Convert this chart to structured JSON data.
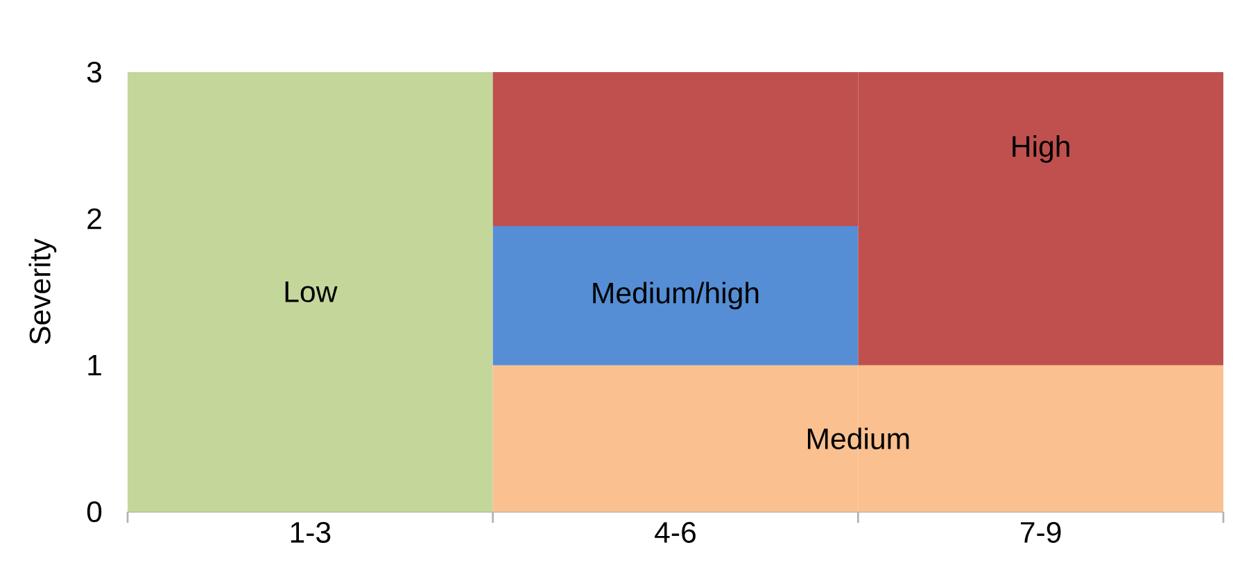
{
  "chart_data": {
    "type": "bar",
    "stacked": true,
    "ylabel": "Severity",
    "categories": [
      "1-3",
      "4-6",
      "7-9"
    ],
    "series": [
      {
        "name": "Low",
        "color": "#c4d79b",
        "values": [
          3,
          null,
          null
        ]
      },
      {
        "name": "Medium",
        "color": "#fac090",
        "values": [
          null,
          1,
          1
        ]
      },
      {
        "name": "Medium/high",
        "color": "#558ed5",
        "values": [
          null,
          0.95,
          null
        ]
      },
      {
        "name": "High",
        "color": "#c0504d",
        "values": [
          null,
          1.05,
          2
        ]
      }
    ],
    "ylim": [
      0,
      3
    ],
    "yticks": [
      0,
      1,
      2,
      3
    ]
  }
}
